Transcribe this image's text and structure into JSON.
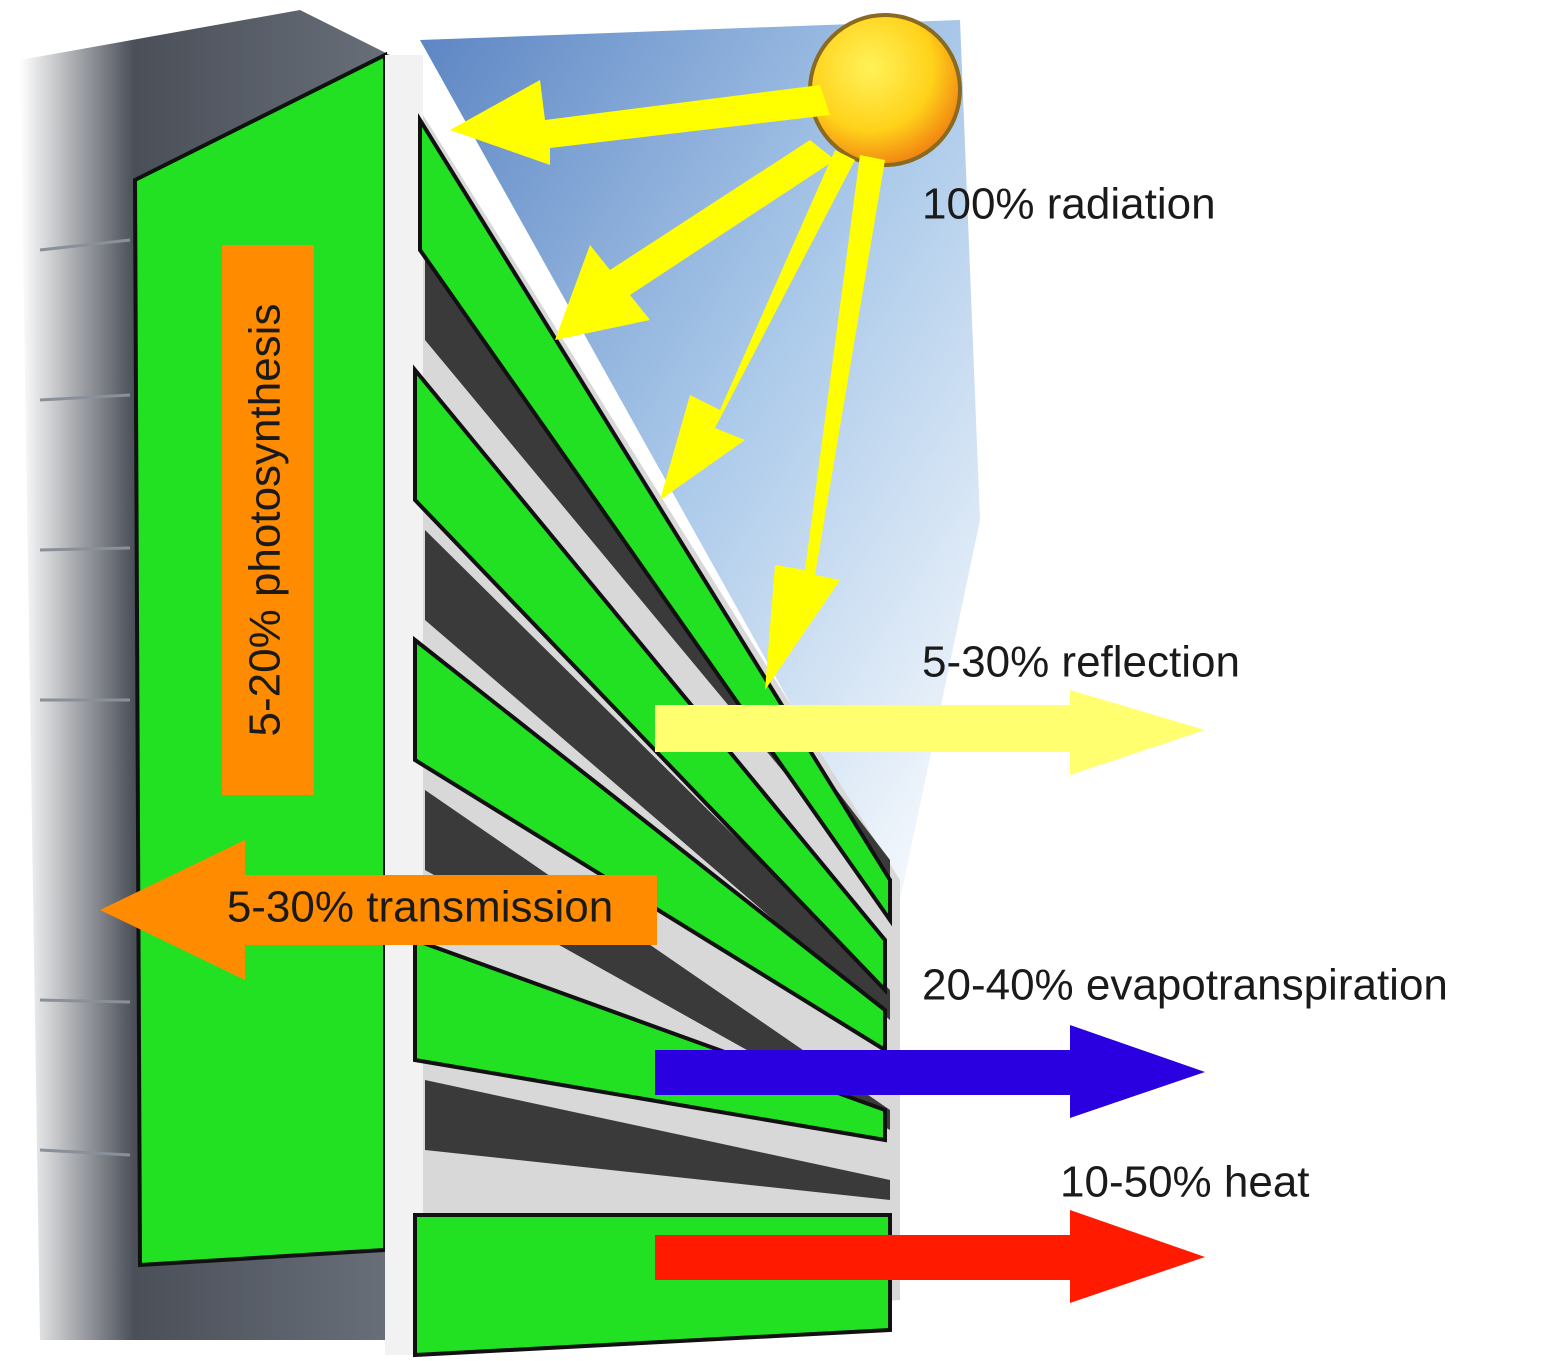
{
  "labels": {
    "radiation": "100% radiation",
    "reflection": "5-30% reflection",
    "evapotranspiration": "20-40% evapotranspiration",
    "heat": "10-50% heat",
    "transmission": "5-30% transmission",
    "photosynthesis": "5-20% photosynthesis"
  }
}
